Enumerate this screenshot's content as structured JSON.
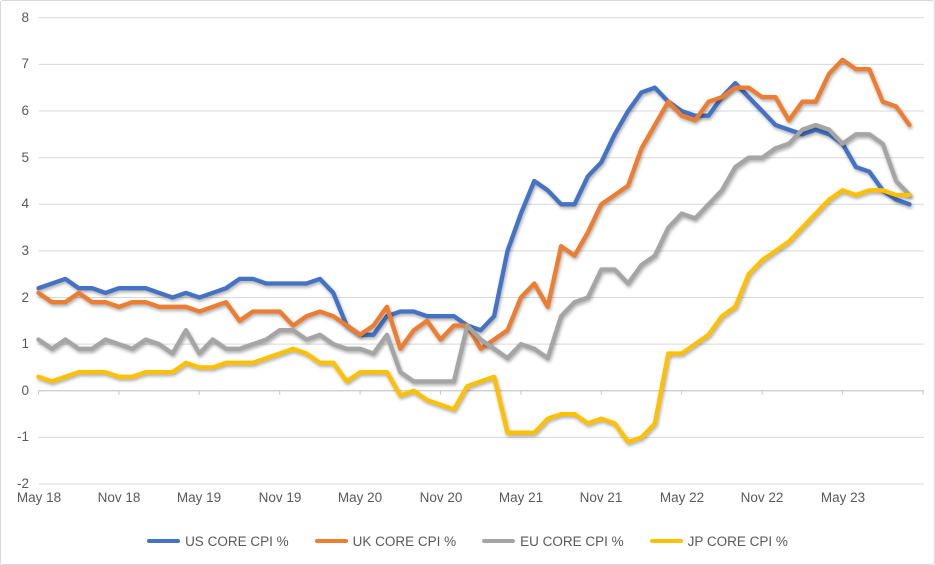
{
  "chart_data": {
    "type": "line",
    "title": "",
    "xlabel": "",
    "ylabel": "",
    "ylim": [
      -2,
      8
    ],
    "grid": true,
    "legend_position": "bottom",
    "y_ticks": [
      8,
      7,
      6,
      5,
      4,
      3,
      2,
      1,
      0,
      -1,
      -2
    ],
    "y_axis_tick_labels": [
      "8",
      "7",
      "6",
      "5",
      "4",
      "3",
      "2",
      "1",
      "0",
      "-1",
      "-2"
    ],
    "x_axis_tick_labels": [
      "May 18",
      "Nov 18",
      "May 19",
      "Nov 19",
      "May 20",
      "Nov 20",
      "May 21",
      "Nov 21",
      "May 22",
      "Nov 22",
      "May 23"
    ],
    "x_tick_interval_months": 6,
    "categories": [
      "May 18",
      "Jun 18",
      "Jul 18",
      "Aug 18",
      "Sep 18",
      "Oct 18",
      "Nov 18",
      "Dec 18",
      "Jan 19",
      "Feb 19",
      "Mar 19",
      "Apr 19",
      "May 19",
      "Jun 19",
      "Jul 19",
      "Aug 19",
      "Sep 19",
      "Oct 19",
      "Nov 19",
      "Dec 19",
      "Jan 20",
      "Feb 20",
      "Mar 20",
      "Apr 20",
      "May 20",
      "Jun 20",
      "Jul 20",
      "Aug 20",
      "Sep 20",
      "Oct 20",
      "Nov 20",
      "Dec 20",
      "Jan 21",
      "Feb 21",
      "Mar 21",
      "Apr 21",
      "May 21",
      "Jun 21",
      "Jul 21",
      "Aug 21",
      "Sep 21",
      "Oct 21",
      "Nov 21",
      "Dec 21",
      "Jan 22",
      "Feb 22",
      "Mar 22",
      "Apr 22",
      "May 22",
      "Jun 22",
      "Jul 22",
      "Aug 22",
      "Sep 22",
      "Oct 22",
      "Nov 22",
      "Dec 22",
      "Jan 23",
      "Feb 23",
      "Mar 23",
      "Apr 23",
      "May 23",
      "Jun 23",
      "Jul 23",
      "Aug 23",
      "Sep 23",
      "Oct 23"
    ],
    "series": [
      {
        "id": "us-core-cpi",
        "name": "US CORE CPI %",
        "color": "#4472C4",
        "values": [
          2.2,
          2.3,
          2.4,
          2.2,
          2.2,
          2.1,
          2.2,
          2.2,
          2.2,
          2.1,
          2.0,
          2.1,
          2.0,
          2.1,
          2.2,
          2.4,
          2.4,
          2.3,
          2.3,
          2.3,
          2.3,
          2.4,
          2.1,
          1.4,
          1.2,
          1.2,
          1.6,
          1.7,
          1.7,
          1.6,
          1.6,
          1.6,
          1.4,
          1.3,
          1.6,
          3.0,
          3.8,
          4.5,
          4.3,
          4.0,
          4.0,
          4.6,
          4.9,
          5.5,
          6.0,
          6.4,
          6.5,
          6.2,
          6.0,
          5.9,
          5.9,
          6.3,
          6.6,
          6.3,
          6.0,
          5.7,
          5.6,
          5.5,
          5.6,
          5.5,
          5.3,
          4.8,
          4.7,
          4.3,
          4.1,
          4.0
        ]
      },
      {
        "id": "uk-core-cpi",
        "name": "UK CORE CPI %",
        "color": "#ED7D31",
        "values": [
          2.1,
          1.9,
          1.9,
          2.1,
          1.9,
          1.9,
          1.8,
          1.9,
          1.9,
          1.8,
          1.8,
          1.8,
          1.7,
          1.8,
          1.9,
          1.5,
          1.7,
          1.7,
          1.7,
          1.4,
          1.6,
          1.7,
          1.6,
          1.4,
          1.2,
          1.4,
          1.8,
          0.9,
          1.3,
          1.5,
          1.1,
          1.4,
          1.4,
          0.9,
          1.1,
          1.3,
          2.0,
          2.3,
          1.8,
          3.1,
          2.9,
          3.4,
          4.0,
          4.2,
          4.4,
          5.2,
          5.7,
          6.2,
          5.9,
          5.8,
          6.2,
          6.3,
          6.5,
          6.5,
          6.3,
          6.3,
          5.8,
          6.2,
          6.2,
          6.8,
          7.1,
          6.9,
          6.9,
          6.2,
          6.1,
          5.7
        ]
      },
      {
        "id": "eu-core-cpi",
        "name": "EU CORE CPI %",
        "color": "#A5A5A5",
        "values": [
          1.1,
          0.9,
          1.1,
          0.9,
          0.9,
          1.1,
          1.0,
          0.9,
          1.1,
          1.0,
          0.8,
          1.3,
          0.8,
          1.1,
          0.9,
          0.9,
          1.0,
          1.1,
          1.3,
          1.3,
          1.1,
          1.2,
          1.0,
          0.9,
          0.9,
          0.8,
          1.2,
          0.4,
          0.2,
          0.2,
          0.2,
          0.2,
          1.4,
          1.1,
          0.9,
          0.7,
          1.0,
          0.9,
          0.7,
          1.6,
          1.9,
          2.0,
          2.6,
          2.6,
          2.3,
          2.7,
          2.9,
          3.5,
          3.8,
          3.7,
          4.0,
          4.3,
          4.8,
          5.0,
          5.0,
          5.2,
          5.3,
          5.6,
          5.7,
          5.6,
          5.3,
          5.5,
          5.5,
          5.3,
          4.5,
          4.2
        ]
      },
      {
        "id": "jp-core-cpi",
        "name": "JP CORE CPI %",
        "color": "#FFC000",
        "values": [
          0.3,
          0.2,
          0.3,
          0.4,
          0.4,
          0.4,
          0.3,
          0.3,
          0.4,
          0.4,
          0.4,
          0.6,
          0.5,
          0.5,
          0.6,
          0.6,
          0.6,
          0.7,
          0.8,
          0.9,
          0.8,
          0.6,
          0.6,
          0.2,
          0.4,
          0.4,
          0.4,
          -0.1,
          0.0,
          -0.2,
          -0.3,
          -0.4,
          0.1,
          0.2,
          0.3,
          -0.9,
          -0.9,
          -0.9,
          -0.6,
          -0.5,
          -0.5,
          -0.7,
          -0.6,
          -0.7,
          -1.1,
          -1.0,
          -0.7,
          0.8,
          0.8,
          1.0,
          1.2,
          1.6,
          1.8,
          2.5,
          2.8,
          3.0,
          3.2,
          3.5,
          3.8,
          4.1,
          4.3,
          4.2,
          4.3,
          4.3,
          4.2,
          4.2
        ]
      }
    ],
    "style": {
      "gridline_color": "#D9D9D9",
      "axis_line_color": "#C6C6C6",
      "tick_label_color": "#595959",
      "background_color": "#FFFFFF",
      "border_color": "#D8D8D8"
    }
  }
}
